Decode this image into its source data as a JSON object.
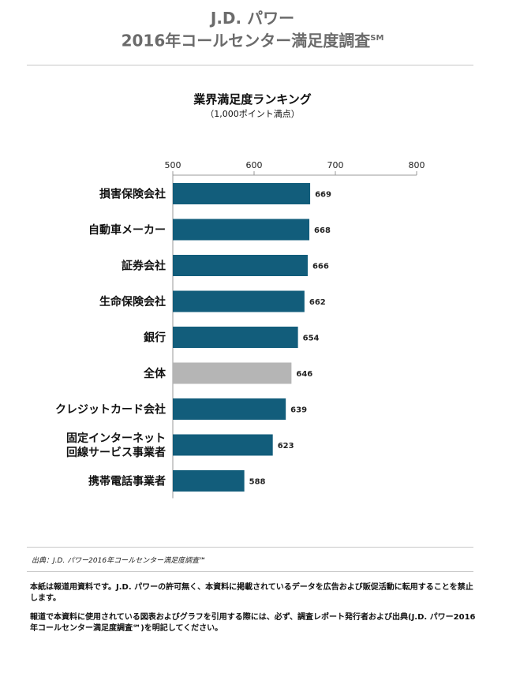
{
  "header": {
    "brand": "J.D. パワー",
    "title": "2016年コールセンター満足度調査",
    "title_mark": "SM"
  },
  "footer": {
    "source": "出典：J.D. パワー2016年コールセンター満足度調査℠",
    "note1": "本紙は報道用資料です。J.D. パワーの許可無く、本資料に掲載されているデータを広告および販促活動に転用することを禁止します。",
    "note2": "報道で本資料に使用されている図表およびグラフを引用する際には、必ず、調査レポート発行者および出典(J.D. パワー2016年コールセンター満足度調査℠)を明記してください。"
  },
  "chart_data": {
    "type": "bar",
    "orientation": "horizontal",
    "title": "業界満足度ランキング",
    "subtitle": "（1,000ポイント満点）",
    "categories": [
      "損害保険会社",
      "自動車メーカー",
      "証券会社",
      "生命保険会社",
      "銀行",
      "全体",
      "クレジットカード会社",
      "固定インターネット\n回線サービス事業者",
      "携帯電話事業者"
    ],
    "values": [
      669,
      668,
      666,
      662,
      654,
      646,
      639,
      623,
      588
    ],
    "highlight_category": "全体",
    "colors": {
      "bar": "#125d7b",
      "highlight": "#b5b5b5"
    },
    "xlim": [
      500,
      800
    ],
    "xticks": [
      500,
      600,
      700,
      800
    ],
    "xlabel": "",
    "ylabel": "",
    "grid": false,
    "data_labels": true
  }
}
